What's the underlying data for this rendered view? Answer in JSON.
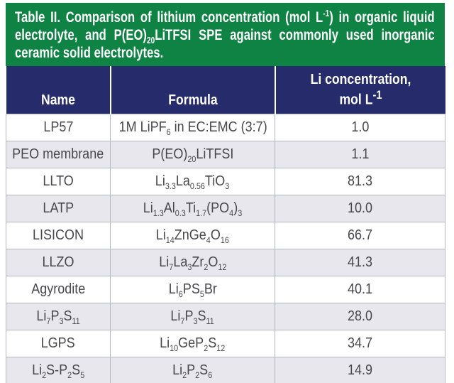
{
  "caption": {
    "text": "Table II. Comparison of lithium concentration (mol L^-1^) in organic liquid electrolyte, and P(EO){20}LiTFSI SPE against commonly used inorganic ceramic solid electrolytes."
  },
  "header": {
    "col1": "Name",
    "col2": "Formula",
    "col3_line1": "Li concentration,",
    "col3_line2": "mol L^-1^"
  },
  "rows": [
    {
      "name": "LP57",
      "formula": "1M LiPF{6} in EC:EMC (3:7)",
      "value": "1.0"
    },
    {
      "name": "PEO membrane",
      "formula": "P(EO){20}LiTFSI",
      "value": "1.1"
    },
    {
      "name": "LLTO",
      "formula": "Li{3.3}La{0.56}TiO{3}",
      "value": "81.3"
    },
    {
      "name": "LATP",
      "formula": "Li{1.3}Al{0.3}Ti{1.7}(PO{4}){3}",
      "value": "10.0"
    },
    {
      "name": "LISICON",
      "formula": "Li{14}ZnGe{4}O{16}",
      "value": "66.7"
    },
    {
      "name": "LLZO",
      "formula": "Li{7}La{3}Zr{2}O{12}",
      "value": "41.3"
    },
    {
      "name": "Agyrodite",
      "formula": "Li{6}PS{5}Br",
      "value": "40.1"
    },
    {
      "name": "Li{7}P{3}S{11}",
      "formula": "Li{7}P{3}S{11}",
      "value": "28.0"
    },
    {
      "name": "LGPS",
      "formula": "Li{10}GeP{2}S{12}",
      "value": "34.7"
    },
    {
      "name": "Li{2}S-P{2}S{5}",
      "formula": "Li{2}P{2}S{6}",
      "value": "14.9"
    }
  ],
  "colors": {
    "caption_bg": "#0f8343",
    "header_bg": "#262c6b",
    "row_alt": "#e9e7ee",
    "grid": "#b5b8c2"
  },
  "chart_data": {
    "type": "table",
    "title": "Table II. Comparison of lithium concentration (mol L⁻¹) in organic liquid electrolyte, and P(EO)₂₀LiTFSI SPE against commonly used inorganic ceramic solid electrolytes.",
    "columns": [
      "Name",
      "Formula",
      "Li concentration, mol L⁻¹"
    ],
    "rows": [
      [
        "LP57",
        "1M LiPF₆ in EC:EMC (3:7)",
        1.0
      ],
      [
        "PEO membrane",
        "P(EO)₂₀LiTFSI",
        1.1
      ],
      [
        "LLTO",
        "Li₃.₃La₀.₅₆TiO₃",
        81.3
      ],
      [
        "LATP",
        "Li₁.₃Al₀.₃Ti₁.₇(PO₄)₃",
        10.0
      ],
      [
        "LISICON",
        "Li₁₄ZnGe₄O₁₆",
        66.7
      ],
      [
        "LLZO",
        "Li₇La₃Zr₂O₁₂",
        41.3
      ],
      [
        "Agyrodite",
        "Li₆PS₅Br",
        40.1
      ],
      [
        "Li₇P₃S₁₁",
        "Li₇P₃S₁₁",
        28.0
      ],
      [
        "LGPS",
        "Li₁₀GeP₂S₁₂",
        34.7
      ],
      [
        "Li₂S-P₂S₅",
        "Li₂P₂S₆",
        14.9
      ]
    ],
    "layout": {
      "caption_position": "top",
      "zebra_striping": true,
      "grid": true
    }
  }
}
